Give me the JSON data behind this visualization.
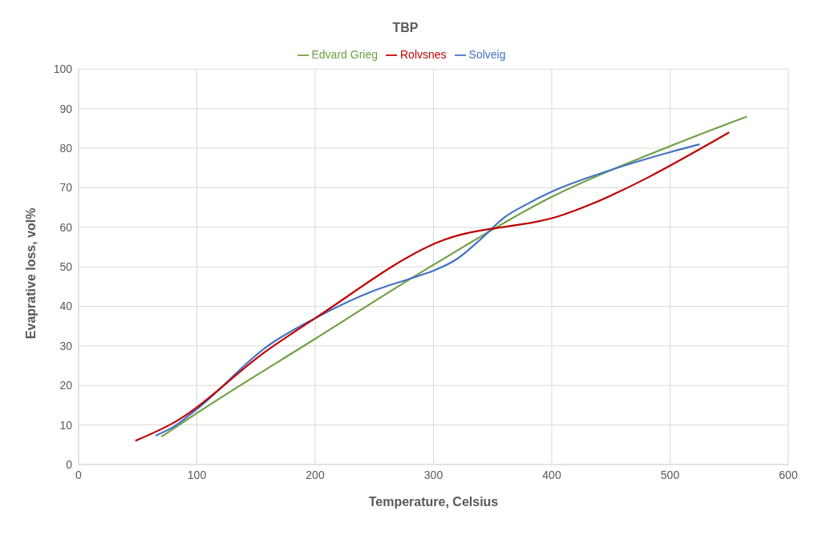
{
  "chart_data": {
    "type": "line",
    "title": "TBP",
    "xlabel": "Temperature, Celsius",
    "ylabel": "Evaprative loss, vol%",
    "xlim": [
      0,
      600
    ],
    "xticks": [
      0,
      100,
      200,
      300,
      400,
      500,
      600
    ],
    "ylim": [
      0,
      100
    ],
    "yticks": [
      0,
      10,
      20,
      30,
      40,
      50,
      60,
      70,
      80,
      90,
      100
    ],
    "grid": true,
    "legend": "top",
    "marker": "none",
    "line_style": "solid",
    "series": [
      {
        "name": "Edvard Grieg",
        "color": "#70a044",
        "x": [
          70,
          100,
          200,
          300,
          400,
          500,
          565
        ],
        "values": [
          7,
          13,
          31.8,
          50.5,
          67.7,
          80.5,
          88
        ]
      },
      {
        "name": "Solveig",
        "color": "#4472c4",
        "x": [
          65,
          80,
          100,
          160,
          200,
          250,
          280,
          300,
          320,
          340,
          360,
          380,
          400,
          450,
          500,
          525
        ],
        "values": [
          7.3,
          9.5,
          14,
          30,
          37,
          44,
          47,
          49,
          52,
          57,
          62.5,
          66,
          69,
          74.5,
          79,
          81
        ]
      },
      {
        "name": "Rolvsnes",
        "color": "#c00000",
        "x": [
          48,
          80,
          160,
          200,
          302,
          410,
          550
        ],
        "values": [
          6,
          10.5,
          29,
          37,
          56,
          63.2,
          84
        ]
      }
    ]
  }
}
